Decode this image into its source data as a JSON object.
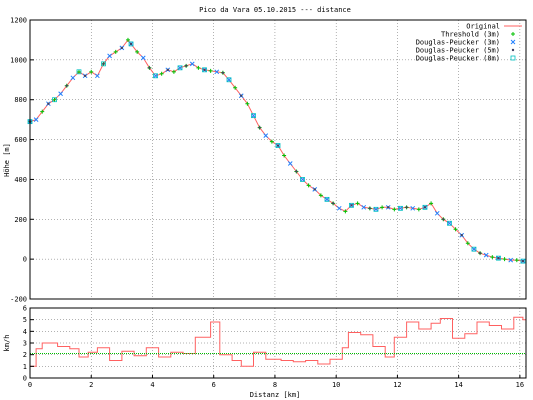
{
  "chart_data": [
    {
      "type": "line",
      "title": "Pico da Vara 05.10.2015 --- distance",
      "xlabel": "",
      "ylabel": "Höhe [m]",
      "xlim": [
        0,
        16.2
      ],
      "ylim": [
        -200,
        1200
      ],
      "xticks": [
        0,
        2,
        4,
        6,
        8,
        10,
        12,
        14,
        16
      ],
      "yticks": [
        -200,
        0,
        200,
        400,
        600,
        800,
        1000,
        1200
      ],
      "grid": true,
      "legend": "top-right",
      "series": [
        {
          "name": "Original",
          "color": "#ff6060",
          "style": "line",
          "x": [
            0.0,
            0.2,
            0.4,
            0.6,
            0.8,
            1.0,
            1.2,
            1.4,
            1.6,
            1.8,
            2.0,
            2.2,
            2.4,
            2.6,
            2.8,
            3.0,
            3.2,
            3.3,
            3.5,
            3.7,
            3.9,
            4.1,
            4.3,
            4.5,
            4.7,
            4.9,
            5.1,
            5.3,
            5.5,
            5.7,
            5.9,
            6.1,
            6.3,
            6.5,
            6.7,
            6.9,
            7.1,
            7.3,
            7.5,
            7.7,
            7.9,
            8.1,
            8.3,
            8.5,
            8.7,
            8.9,
            9.1,
            9.3,
            9.5,
            9.7,
            9.9,
            10.1,
            10.3,
            10.5,
            10.7,
            10.9,
            11.1,
            11.3,
            11.5,
            11.7,
            11.9,
            12.1,
            12.3,
            12.5,
            12.7,
            12.9,
            13.1,
            13.3,
            13.5,
            13.7,
            13.9,
            14.1,
            14.3,
            14.5,
            14.7,
            14.9,
            15.1,
            15.3,
            15.5,
            15.7,
            15.9,
            16.1
          ],
          "y": [
            690,
            700,
            740,
            780,
            800,
            830,
            870,
            910,
            940,
            920,
            940,
            920,
            980,
            1020,
            1040,
            1060,
            1100,
            1080,
            1040,
            1010,
            960,
            920,
            930,
            950,
            940,
            960,
            970,
            980,
            960,
            950,
            945,
            940,
            935,
            900,
            860,
            820,
            780,
            720,
            660,
            620,
            590,
            570,
            520,
            480,
            440,
            400,
            370,
            350,
            320,
            300,
            280,
            255,
            240,
            270,
            280,
            260,
            255,
            250,
            260,
            260,
            250,
            255,
            260,
            255,
            250,
            260,
            280,
            230,
            200,
            180,
            150,
            120,
            80,
            50,
            30,
            20,
            10,
            5,
            0,
            -5,
            -5,
            -10
          ]
        },
        {
          "name": "Threshold (3m)",
          "color": "#00c000",
          "style": "points",
          "x": [
            0.0,
            0.4,
            0.8,
            1.2,
            1.6,
            2.0,
            2.4,
            2.8,
            3.2,
            3.5,
            3.9,
            4.3,
            4.7,
            5.1,
            5.5,
            5.9,
            6.3,
            6.7,
            7.1,
            7.5,
            7.9,
            8.3,
            8.7,
            9.1,
            9.5,
            9.9,
            10.3,
            10.7,
            11.1,
            11.5,
            11.9,
            12.3,
            12.7,
            13.1,
            13.5,
            13.9,
            14.3,
            14.7,
            15.1,
            15.5,
            15.9
          ],
          "y": [
            690,
            740,
            800,
            870,
            940,
            940,
            980,
            1040,
            1100,
            1040,
            960,
            930,
            940,
            970,
            960,
            945,
            935,
            860,
            780,
            660,
            590,
            520,
            440,
            370,
            320,
            280,
            240,
            280,
            255,
            260,
            250,
            260,
            250,
            280,
            200,
            150,
            80,
            30,
            10,
            0,
            -5
          ]
        },
        {
          "name": "Douglas-Peucker (3m)",
          "color": "#2080ff",
          "style": "points",
          "x": [
            0.0,
            0.2,
            0.6,
            1.0,
            1.4,
            1.8,
            2.2,
            2.6,
            3.0,
            3.3,
            3.7,
            4.1,
            4.5,
            4.9,
            5.3,
            5.7,
            6.1,
            6.5,
            6.9,
            7.3,
            7.7,
            8.1,
            8.5,
            8.9,
            9.3,
            9.7,
            10.1,
            10.5,
            10.9,
            11.3,
            11.7,
            12.1,
            12.5,
            12.9,
            13.3,
            13.7,
            14.1,
            14.5,
            14.9,
            15.3,
            15.7,
            16.1
          ],
          "y": [
            690,
            700,
            780,
            830,
            910,
            920,
            920,
            1020,
            1060,
            1080,
            1010,
            920,
            950,
            960,
            980,
            950,
            940,
            900,
            820,
            720,
            620,
            570,
            480,
            400,
            350,
            300,
            255,
            270,
            260,
            250,
            260,
            255,
            255,
            260,
            230,
            180,
            120,
            50,
            20,
            5,
            -5,
            -10
          ]
        },
        {
          "name": "Douglas-Peucker (5m)",
          "color": "#404060",
          "style": "points",
          "x": [
            0.0,
            0.6,
            1.2,
            1.8,
            2.4,
            3.0,
            3.3,
            3.9,
            4.5,
            5.1,
            5.7,
            6.3,
            6.9,
            7.5,
            8.1,
            8.7,
            9.3,
            9.9,
            10.5,
            11.1,
            11.7,
            12.3,
            12.9,
            13.5,
            14.1,
            14.7,
            15.3,
            16.1
          ],
          "y": [
            690,
            780,
            870,
            920,
            980,
            1060,
            1080,
            960,
            950,
            970,
            950,
            935,
            820,
            660,
            570,
            440,
            350,
            280,
            270,
            255,
            260,
            260,
            260,
            200,
            120,
            30,
            5,
            -10
          ]
        },
        {
          "name": "Douglas-Peucker (8m)",
          "color": "#00c0c0",
          "style": "points",
          "x": [
            0.0,
            0.8,
            1.6,
            2.4,
            3.3,
            4.1,
            4.9,
            5.7,
            6.5,
            7.3,
            8.1,
            8.9,
            9.7,
            10.5,
            11.3,
            12.1,
            12.9,
            13.7,
            14.5,
            15.3,
            16.1
          ],
          "y": [
            690,
            800,
            940,
            980,
            1080,
            920,
            960,
            950,
            900,
            720,
            570,
            400,
            300,
            270,
            250,
            255,
            260,
            180,
            50,
            5,
            -10
          ]
        }
      ]
    },
    {
      "type": "line",
      "title": "",
      "xlabel": "Distanz [km]",
      "ylabel": "km/h",
      "xlim": [
        0,
        16.2
      ],
      "ylim": [
        0,
        6
      ],
      "xticks": [
        0,
        2,
        4,
        6,
        8,
        10,
        12,
        14,
        16
      ],
      "yticks": [
        0,
        1,
        2,
        3,
        4,
        5,
        6
      ],
      "grid": true,
      "series": [
        {
          "color": "#ff6060",
          "style": "step",
          "x": [
            0.0,
            0.2,
            0.4,
            0.9,
            1.3,
            1.6,
            1.9,
            2.2,
            2.6,
            3.0,
            3.4,
            3.8,
            4.2,
            4.6,
            5.0,
            5.4,
            5.9,
            6.2,
            6.6,
            6.9,
            7.3,
            7.7,
            8.2,
            8.6,
            9.0,
            9.4,
            9.8,
            10.2,
            10.4,
            10.8,
            11.2,
            11.6,
            11.9,
            12.3,
            12.7,
            13.1,
            13.4,
            13.8,
            14.2,
            14.6,
            15.0,
            15.4,
            15.8,
            16.1
          ],
          "y": [
            1.0,
            2.5,
            3.0,
            2.7,
            2.5,
            1.8,
            2.2,
            2.6,
            1.5,
            2.3,
            1.9,
            2.6,
            1.8,
            2.2,
            2.1,
            3.5,
            4.8,
            2.0,
            1.5,
            1.0,
            2.2,
            1.6,
            1.5,
            1.4,
            1.5,
            1.2,
            1.6,
            2.6,
            3.9,
            3.7,
            2.7,
            1.8,
            3.5,
            4.8,
            4.2,
            4.7,
            5.1,
            3.4,
            3.8,
            4.8,
            4.5,
            4.2,
            5.2,
            5.0
          ]
        },
        {
          "color": "#00c000",
          "style": "dotted",
          "x": [
            0.0,
            16.2
          ],
          "y": [
            2.1,
            2.1
          ]
        }
      ]
    }
  ]
}
